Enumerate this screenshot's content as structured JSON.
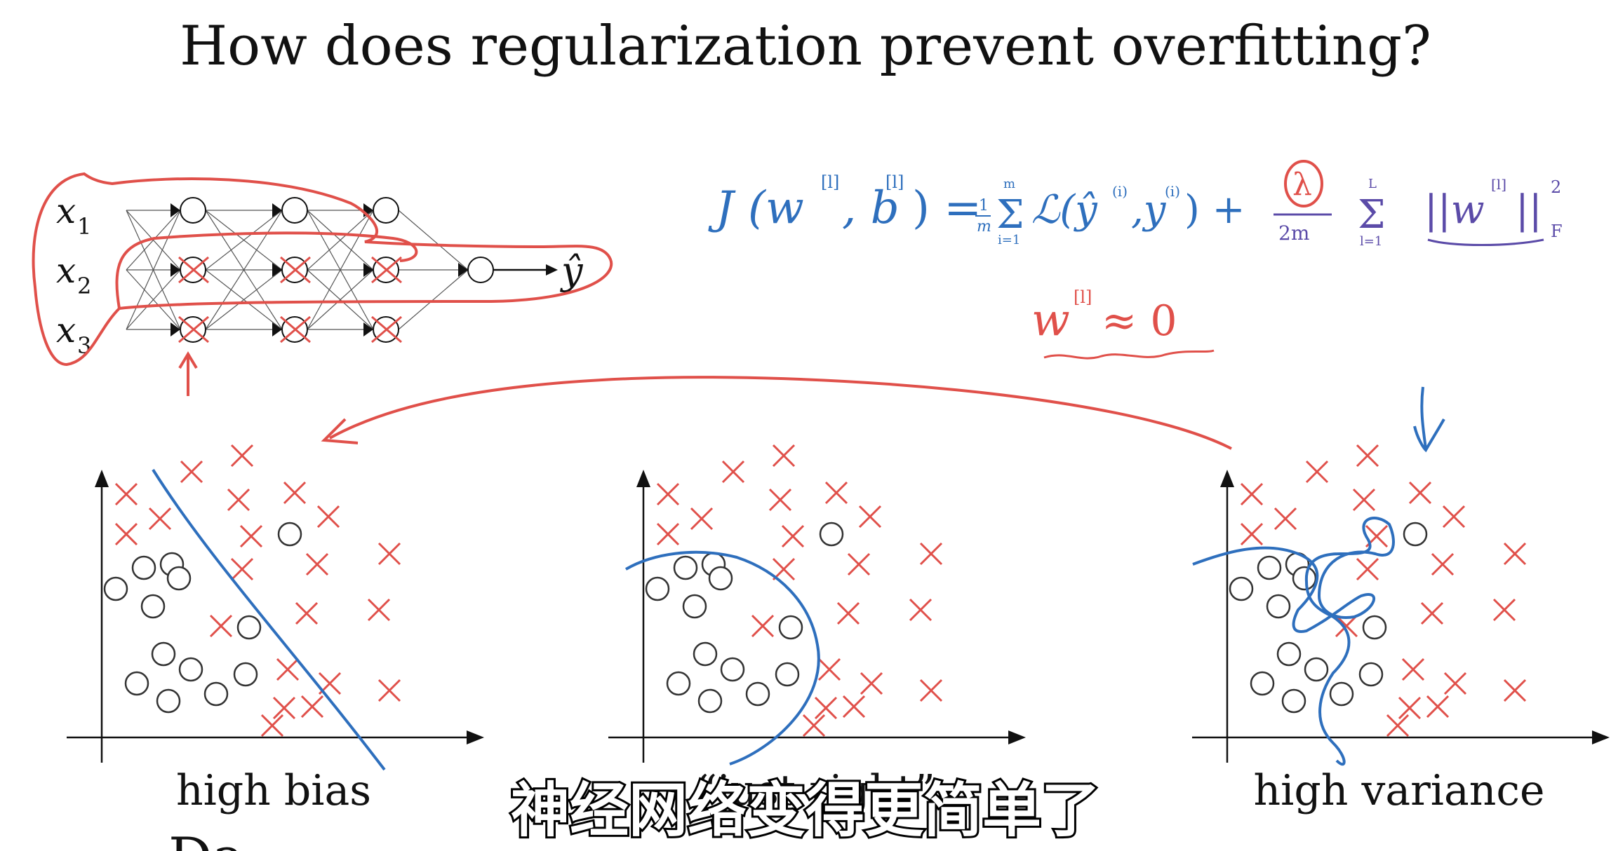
{
  "slide": {
    "title": "How does regularization prevent overfitting?",
    "subtitle": "神经网络变得更简单了"
  },
  "network": {
    "inputs": [
      "x",
      "x",
      "x"
    ],
    "input_subscripts": [
      "1",
      "2",
      "3"
    ],
    "output": "ŷ"
  },
  "annotations": {
    "cost_function": "J(w[l], b[l]) = 1/m Σ(i=1..m) ℒ(ŷ(i), y(i)) + λ/2m Σ(l=1..L) ||w[l]||²F",
    "weights_small": "w[l] ≈ 0"
  },
  "plots": [
    {
      "caption": "high bias"
    },
    {
      "caption": "“just right”"
    },
    {
      "caption": "high variance"
    }
  ],
  "colors": {
    "circle": "#333333",
    "cross": "#e0504a",
    "boundary": "#2e6fbd",
    "annotation_red": "#e0504a",
    "annotation_blue": "#2e6fbd",
    "annotation_purple": "#5b4ba8"
  }
}
